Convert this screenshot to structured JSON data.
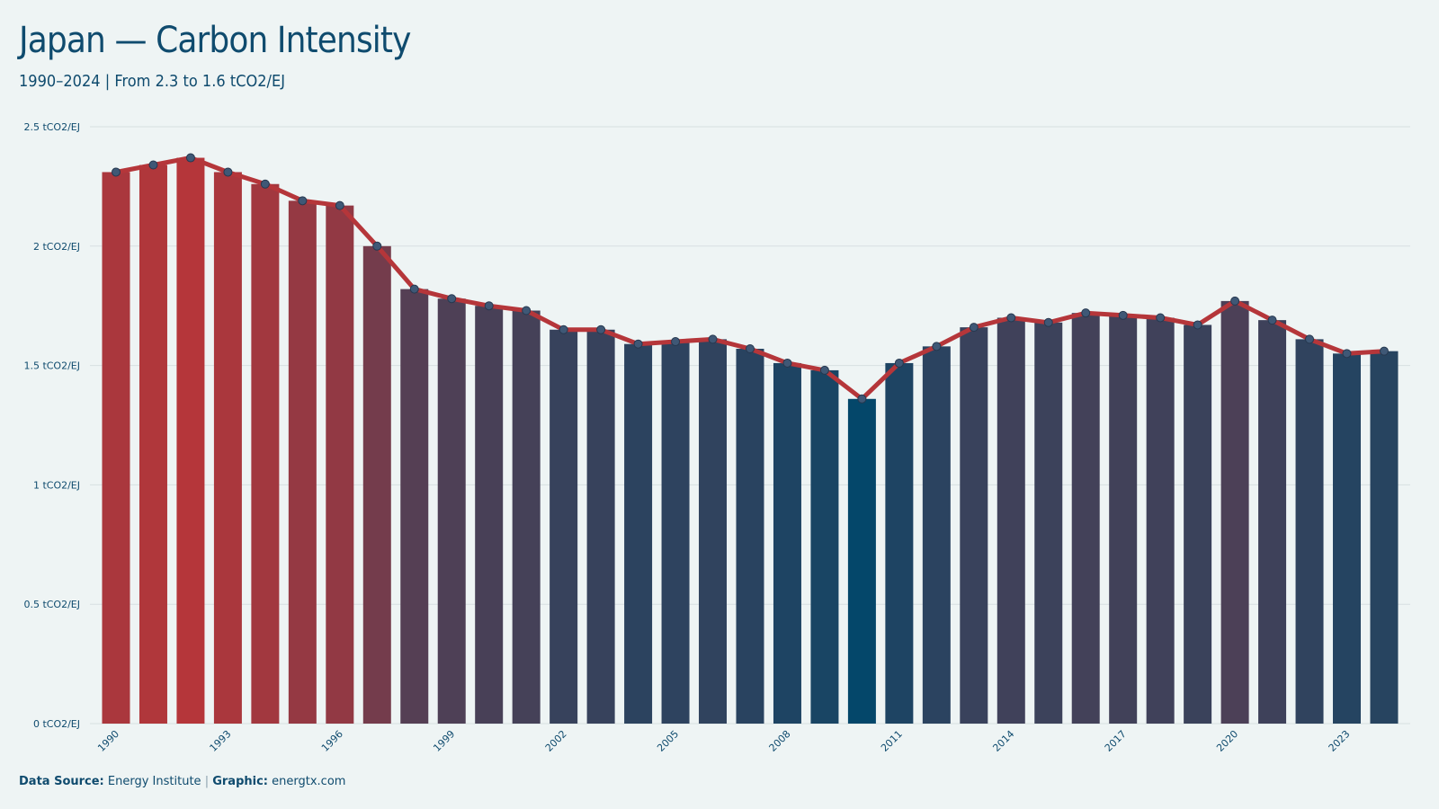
{
  "header": {
    "title": "Japan — Carbon Intensity",
    "subtitle": "1990–2024 | From 2.3 to 1.6 tCO2/EJ"
  },
  "footer": {
    "source_label": "Data Source:",
    "source_value": "Energy Institute",
    "separator": "|",
    "graphic_label": "Graphic:",
    "graphic_value": "energtx.com"
  },
  "colors": {
    "background": "#eef4f4",
    "high": "#b5363a",
    "low": "#04476a",
    "line": "#b5363a",
    "marker": "#3f5876",
    "grid": "#d7dfe1",
    "text": "#0f4b6e"
  },
  "chart_data": {
    "type": "bar",
    "title": "Japan — Carbon Intensity",
    "subtitle": "1990–2024 | From 2.3 to 1.6 tCO2/EJ",
    "ylim": [
      0,
      2.5
    ],
    "y_ticks": [
      0,
      0.5,
      1,
      1.5,
      2,
      2.5
    ],
    "y_tick_labels": [
      "0 tCO2/EJ",
      "0.5 tCO2/EJ",
      "1 tCO2/EJ",
      "1.5 tCO2/EJ",
      "2 tCO2/EJ",
      "2.5 tCO2/EJ"
    ],
    "x_tick_labels": [
      "1990",
      "1993",
      "1996",
      "1999",
      "2002",
      "2005",
      "2008",
      "2011",
      "2014",
      "2017",
      "2020",
      "2023"
    ],
    "grid": true,
    "overlay_line": true,
    "categories": [
      "1990",
      "1991",
      "1992",
      "1993",
      "1994",
      "1995",
      "1996",
      "1997",
      "1998",
      "1999",
      "2000",
      "2001",
      "2002",
      "2003",
      "2004",
      "2005",
      "2006",
      "2007",
      "2008",
      "2009",
      "2010",
      "2011",
      "2012",
      "2013",
      "2014",
      "2015",
      "2016",
      "2017",
      "2018",
      "2019",
      "2020",
      "2021",
      "2022",
      "2023",
      "2024"
    ],
    "values": [
      2.31,
      2.34,
      2.37,
      2.31,
      2.26,
      2.19,
      2.17,
      2.0,
      1.82,
      1.78,
      1.75,
      1.73,
      1.65,
      1.65,
      1.59,
      1.6,
      1.61,
      1.57,
      1.51,
      1.48,
      1.36,
      1.51,
      1.58,
      1.66,
      1.7,
      1.68,
      1.72,
      1.71,
      1.7,
      1.67,
      1.77,
      1.69,
      1.61,
      1.55,
      1.56
    ]
  }
}
